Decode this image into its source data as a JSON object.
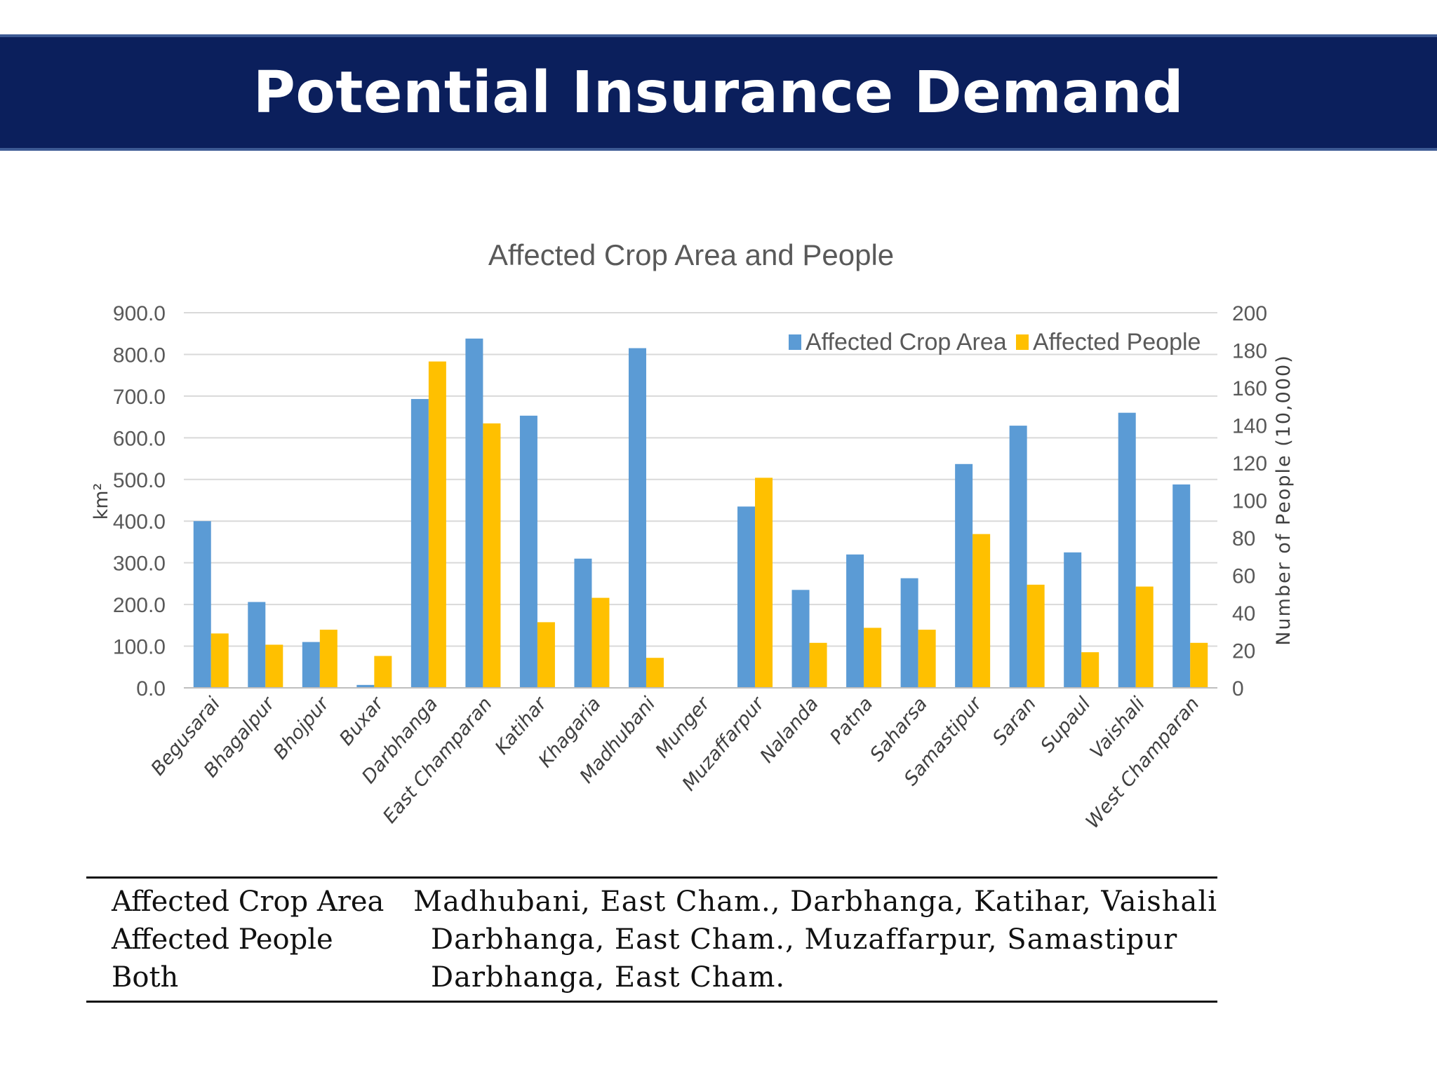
{
  "slide": {
    "title": "Potential Insurance Demand",
    "banner_color": "#0b1f5c"
  },
  "chart_data": {
    "type": "bar",
    "title": "Affected Crop Area and People",
    "categories": [
      "Begusarai",
      "Bhagalpur",
      "Bhojpur",
      "Buxar",
      "Darbhanga",
      "East Champaran",
      "Katihar",
      "Khagaria",
      "Madhubani",
      "Munger",
      "Muzaffarpur",
      "Nalanda",
      "Patna",
      "Saharsa",
      "Samastipur",
      "Saran",
      "Supaul",
      "Vaishali",
      "West Champaran"
    ],
    "series": [
      {
        "name": "Affected Crop Area",
        "axis": "left",
        "color": "#5b9bd5",
        "values": [
          400,
          206,
          110,
          7,
          693,
          838,
          653,
          310,
          815,
          0,
          435,
          235,
          320,
          263,
          537,
          629,
          325,
          660,
          488
        ]
      },
      {
        "name": "Affected People",
        "axis": "right",
        "color": "#ffc000",
        "values": [
          29,
          23,
          31,
          17,
          174,
          141,
          35,
          48,
          16,
          0,
          112,
          24,
          32,
          31,
          82,
          55,
          19,
          54,
          24
        ]
      }
    ],
    "ylabel": "km²",
    "y2label": "Number of People (10,000)",
    "ylim": [
      0,
      900
    ],
    "y2lim": [
      0,
      200
    ],
    "yticks": [
      "0.0",
      "100.0",
      "200.0",
      "300.0",
      "400.0",
      "500.0",
      "600.0",
      "700.0",
      "800.0",
      "900.0"
    ],
    "y2ticks": [
      "0",
      "20",
      "40",
      "60",
      "80",
      "100",
      "120",
      "140",
      "160",
      "180",
      "200"
    ],
    "grid": true,
    "legend_position": "top-right"
  },
  "summary_table": {
    "rows": [
      {
        "label": "Affected Crop Area",
        "value": "Madhubani, East Cham., Darbhanga, Katihar, Vaishali"
      },
      {
        "label": "Affected People",
        "value": "Darbhanga, East Cham., Muzaffarpur, Samastipur"
      },
      {
        "label": "Both",
        "value": "Darbhanga, East Cham."
      }
    ]
  }
}
